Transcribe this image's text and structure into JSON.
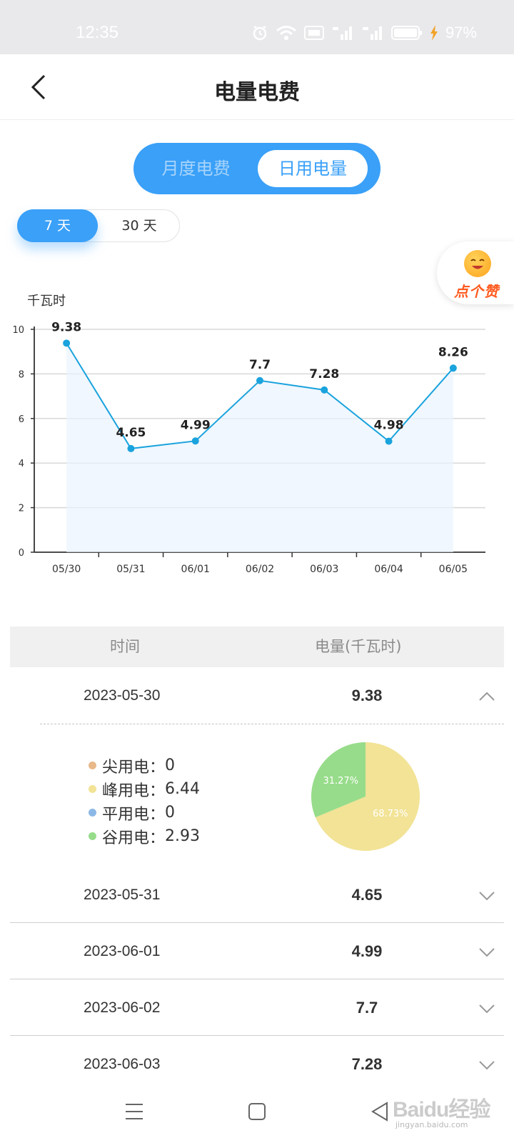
{
  "status_bar": {
    "time": "12:35",
    "battery": "97%"
  },
  "header": {
    "title": "电量电费"
  },
  "tabs": {
    "monthly": "月度电费",
    "daily": "日用电量"
  },
  "range": {
    "seven": "7 天",
    "thirty": "30 天"
  },
  "like": {
    "label": "点个赞"
  },
  "chart_data": {
    "type": "line",
    "ylabel": "千瓦时",
    "categories": [
      "05/30",
      "05/31",
      "06/01",
      "06/02",
      "06/03",
      "06/04",
      "06/05"
    ],
    "values": [
      9.38,
      4.65,
      4.99,
      7.7,
      7.28,
      4.98,
      8.26
    ],
    "ylim": [
      0,
      10
    ],
    "yticks": [
      0,
      2,
      4,
      6,
      8,
      10
    ],
    "grid": true,
    "line_color": "#1aa3dd",
    "point_color": "#1aa3dd"
  },
  "table": {
    "header": {
      "time": "时间",
      "amount": "电量(千瓦时)"
    },
    "rows": [
      {
        "date": "2023-05-30",
        "amount": "9.38"
      },
      {
        "date": "2023-05-31",
        "amount": "4.65"
      },
      {
        "date": "2023-06-01",
        "amount": "4.99"
      },
      {
        "date": "2023-06-02",
        "amount": "7.7"
      },
      {
        "date": "2023-06-03",
        "amount": "7.28"
      }
    ]
  },
  "breakdown": {
    "items": [
      {
        "label": "尖用电：",
        "value": "0",
        "color": "#e8b88a"
      },
      {
        "label": "峰用电：",
        "value": "6.44",
        "color": "#f2e396"
      },
      {
        "label": "平用电：",
        "value": "0",
        "color": "#8cb8e6"
      },
      {
        "label": "谷用电：",
        "value": "2.93",
        "color": "#97dc8a"
      }
    ],
    "pie": [
      {
        "name": "峰用电",
        "percent": 68.73,
        "label": "68.73%",
        "color": "#f2e396"
      },
      {
        "name": "谷用电",
        "percent": 31.27,
        "label": "31.27%",
        "color": "#97dc8a"
      }
    ]
  },
  "watermark": {
    "text": "Baidu经验",
    "sub": "jingyan.baidu.com"
  }
}
